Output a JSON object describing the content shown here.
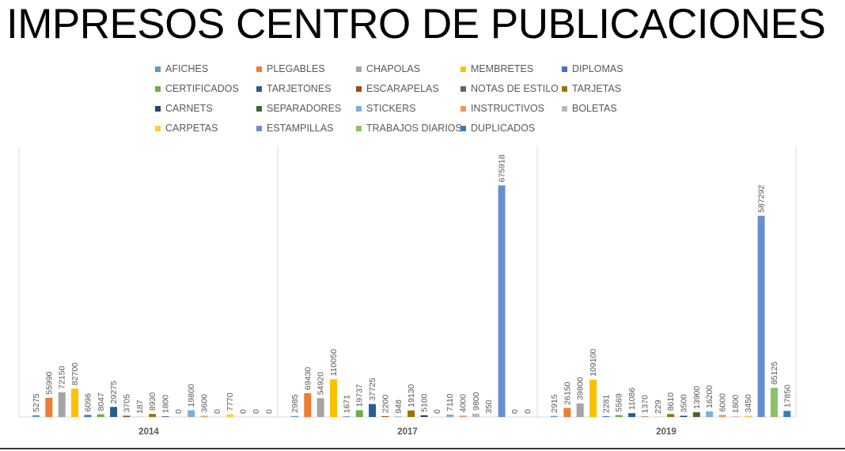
{
  "chart_data": {
    "type": "bar",
    "title": "IMPRESOS CENTRO DE PUBLICACIONES",
    "categories": [
      "2014",
      "2017",
      "2019"
    ],
    "legend_position": "top",
    "grid": false,
    "series": [
      {
        "name": "AFICHES",
        "color": "#5B9BD5",
        "values": [
          5275,
          2985,
          2915
        ]
      },
      {
        "name": "PLEGABLES",
        "color": "#ED7D31",
        "values": [
          55990,
          69430,
          26150
        ]
      },
      {
        "name": "CHAPOLAS",
        "color": "#A5A5A5",
        "values": [
          72150,
          54920,
          39800
        ]
      },
      {
        "name": "MEMBRETES",
        "color": "#FFC000",
        "values": [
          82700,
          110050,
          109100
        ]
      },
      {
        "name": "DIPLOMAS",
        "color": "#4472C4",
        "values": [
          6096,
          1671,
          2281
        ]
      },
      {
        "name": "CERTIFICADOS",
        "color": "#70AD47",
        "values": [
          8047,
          19737,
          5569
        ]
      },
      {
        "name": "TARJETONES",
        "color": "#255E91",
        "values": [
          29275,
          37725,
          11086
        ]
      },
      {
        "name": "ESCARAPELAS",
        "color": "#9E480E",
        "values": [
          3705,
          2200,
          1370
        ]
      },
      {
        "name": "NOTAS DE ESTILO",
        "color": "#636363",
        "values": [
          187,
          948,
          229
        ]
      },
      {
        "name": "TARJETAS",
        "color": "#997300",
        "values": [
          8930,
          19130,
          8610
        ]
      },
      {
        "name": "CARNETS",
        "color": "#264478",
        "values": [
          1800,
          5100,
          3500
        ]
      },
      {
        "name": "SEPARADORES",
        "color": "#43682B",
        "values": [
          0,
          0,
          13900
        ]
      },
      {
        "name": "STICKERS",
        "color": "#7CAFDD",
        "values": [
          19800,
          7110,
          16200
        ]
      },
      {
        "name": "INSTRUCTIVOS",
        "color": "#F1975A",
        "values": [
          3600,
          4000,
          6000
        ]
      },
      {
        "name": "BOLETAS",
        "color": "#B7B7B7",
        "values": [
          0,
          9800,
          1800
        ]
      },
      {
        "name": "CARPETAS",
        "color": "#FFCD33",
        "values": [
          7770,
          350,
          3450
        ]
      },
      {
        "name": "ESTAMPILLAS",
        "color": "#698ED0",
        "values": [
          0,
          675918,
          587292
        ]
      },
      {
        "name": "TRABAJOS DIARIOS",
        "color": "#8CC168",
        "values": [
          0,
          0,
          85125
        ]
      },
      {
        "name": "DUPLICADOS",
        "color": "#327DC2",
        "values": [
          0,
          0,
          17850
        ]
      }
    ],
    "data_labels": {
      "2014": [
        "5275",
        "55990",
        "72150",
        "82700",
        "6096",
        "8047",
        "29275",
        "3705",
        "187",
        "8930",
        "1800",
        "0",
        "19800",
        "3600",
        "0",
        "7770",
        "0",
        "0",
        "0"
      ],
      "2017": [
        "2985",
        "69430",
        "54920",
        "110050",
        "1671",
        "19737",
        "37725",
        "2200",
        "948",
        "19130",
        "5100",
        "0",
        "7110",
        "4000",
        "9800",
        "350",
        "675918",
        "0",
        "0"
      ],
      "2019": [
        "2915",
        "26150",
        "39800",
        "109100",
        "2281",
        "5569",
        "11086",
        "1370",
        "229",
        "8610",
        "3500",
        "13900",
        "16200",
        "6000",
        "1800",
        "3450",
        "587292",
        "85125",
        "17850"
      ]
    },
    "y_axis_visible": false,
    "ylim": [
      0,
      1000000
    ]
  }
}
